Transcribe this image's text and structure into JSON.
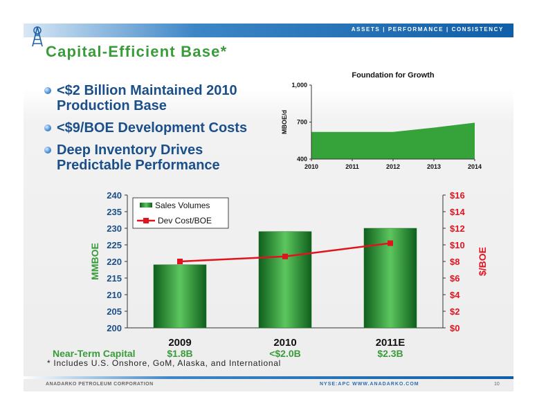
{
  "header": {
    "tagline": "ASSETS | PERFORMANCE | CONSISTENCY"
  },
  "slide": {
    "title": "Capital-Efficient Base*",
    "bullets": [
      "<$2 Billion Maintained 2010 Production Base",
      "<$9/BOE Development Costs",
      "Deep Inventory Drives Predictable Performance"
    ]
  },
  "bottom_labels": {
    "row_label": "Near-Term Capital",
    "capital": [
      "$1.8B",
      "<$2.0B",
      "$2.3B"
    ]
  },
  "footnote": "* Includes U.S. Onshore, GoM, Alaska, and International",
  "footer": {
    "company": "ANADARKO PETROLEUM CORPORATION",
    "ticker": "NYSE:APC   WWW.ANADARKO.COM",
    "page": "10"
  },
  "colors": {
    "title_green": "#3a9b3a",
    "bullet_blue": "#1b4f8a",
    "bar_green": "#2f8f32",
    "line_red": "#e0141e",
    "area_green": "#35a23a"
  },
  "chart_data": [
    {
      "type": "bar",
      "title": "",
      "categories": [
        "2009",
        "2010",
        "2011E"
      ],
      "series": [
        {
          "name": "Sales Volumes",
          "type": "bar",
          "axis": "left",
          "values": [
            219,
            229,
            230
          ]
        },
        {
          "name": "Dev Cost/BOE",
          "type": "line",
          "axis": "right",
          "values": [
            8.0,
            8.6,
            10.2
          ]
        }
      ],
      "ylabel": "MMBOE",
      "y2label": "$/BOE",
      "ylim": [
        200,
        240
      ],
      "y2lim": [
        0,
        16
      ],
      "yticks": [
        "200",
        "205",
        "210",
        "215",
        "220",
        "225",
        "230",
        "235",
        "240"
      ],
      "y2ticks": [
        "$0",
        "$2",
        "$4",
        "$6",
        "$8",
        "$10",
        "$12",
        "$14",
        "$16"
      ],
      "legend": "top-left",
      "grid": false
    },
    {
      "type": "area",
      "title": "Foundation for Growth",
      "x": [
        "2010",
        "2011",
        "2012",
        "2013",
        "2014"
      ],
      "values": [
        620,
        620,
        620,
        655,
        695
      ],
      "ylabel": "MBOE/d",
      "ylim": [
        400,
        1000
      ],
      "yticks": [
        "400",
        "700",
        "1,000"
      ],
      "grid": false
    }
  ]
}
